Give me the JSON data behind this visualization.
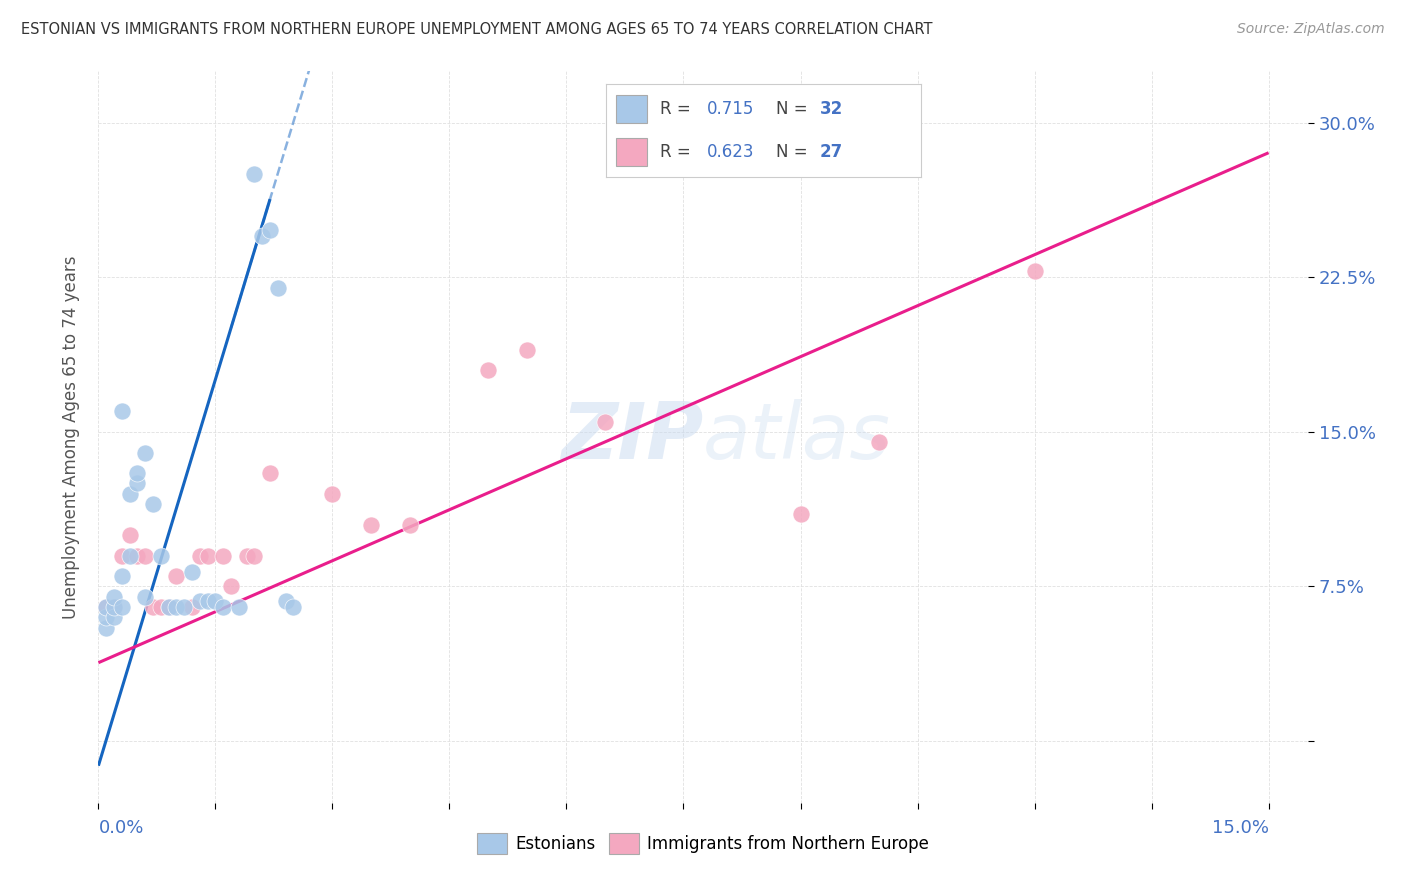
{
  "title": "ESTONIAN VS IMMIGRANTS FROM NORTHERN EUROPE UNEMPLOYMENT AMONG AGES 65 TO 74 YEARS CORRELATION CHART",
  "source": "Source: ZipAtlas.com",
  "ylabel": "Unemployment Among Ages 65 to 74 years",
  "legend_estonians": "Estonians",
  "legend_immigrants": "Immigrants from Northern Europe",
  "r_blue": "0.715",
  "n_blue": "32",
  "r_pink": "0.623",
  "n_pink": "27",
  "blue_fill": "#a8c8e8",
  "pink_fill": "#f4a8c0",
  "blue_line": "#1565c0",
  "pink_line": "#e91e8c",
  "accent_blue": "#4472c4",
  "title_color": "#333333",
  "grid_color": "#e0e0e0",
  "blue_x": [
    0.001,
    0.001,
    0.001,
    0.002,
    0.002,
    0.002,
    0.003,
    0.003,
    0.004,
    0.004,
    0.005,
    0.005,
    0.006,
    0.006,
    0.007,
    0.008,
    0.009,
    0.01,
    0.011,
    0.012,
    0.013,
    0.014,
    0.015,
    0.016,
    0.018,
    0.02,
    0.021,
    0.022,
    0.023,
    0.024,
    0.025,
    0.003
  ],
  "blue_y": [
    0.055,
    0.06,
    0.065,
    0.06,
    0.065,
    0.07,
    0.065,
    0.08,
    0.09,
    0.12,
    0.125,
    0.13,
    0.14,
    0.07,
    0.115,
    0.09,
    0.065,
    0.065,
    0.065,
    0.082,
    0.068,
    0.068,
    0.068,
    0.065,
    0.065,
    0.275,
    0.245,
    0.248,
    0.22,
    0.068,
    0.065,
    0.16
  ],
  "pink_x": [
    0.001,
    0.002,
    0.003,
    0.004,
    0.005,
    0.006,
    0.007,
    0.008,
    0.009,
    0.01,
    0.012,
    0.013,
    0.014,
    0.016,
    0.017,
    0.019,
    0.02,
    0.022,
    0.03,
    0.035,
    0.04,
    0.05,
    0.055,
    0.065,
    0.09,
    0.1,
    0.12
  ],
  "pink_y": [
    0.065,
    0.065,
    0.09,
    0.1,
    0.09,
    0.09,
    0.065,
    0.065,
    0.065,
    0.08,
    0.065,
    0.09,
    0.09,
    0.09,
    0.075,
    0.09,
    0.09,
    0.13,
    0.12,
    0.105,
    0.105,
    0.18,
    0.19,
    0.155,
    0.11,
    0.145,
    0.228
  ],
  "xlim": [
    0.0,
    0.155
  ],
  "ylim": [
    -0.03,
    0.325
  ],
  "x_ticks": [
    0.0,
    0.015,
    0.03,
    0.045,
    0.06,
    0.075,
    0.09,
    0.105,
    0.12,
    0.135,
    0.15
  ],
  "y_ticks": [
    0.0,
    0.075,
    0.15,
    0.225,
    0.3
  ],
  "y_tick_labels": [
    "",
    "7.5%",
    "15.0%",
    "22.5%",
    "30.0%"
  ]
}
